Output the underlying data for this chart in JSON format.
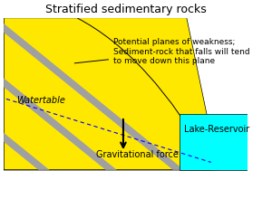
{
  "title": "Stratified sedimentary rocks",
  "title_fontsize": 9,
  "bg_color": "#f0f0f0",
  "yellow_color": "#FFE800",
  "gray_color": "#A0A0A0",
  "cyan_color": "#00FFFF",
  "white_color": "#FFFFFF",
  "watertable_label": "Watertable",
  "gravitational_label": "Gravitational force",
  "lake_label": "Lake-Reservoir",
  "annotation_text": "Potential planes of weakness;\nSediment-rock that falls will tend\nto move down this plane",
  "annotation_fontsize": 6.5,
  "label_fontsize": 7
}
